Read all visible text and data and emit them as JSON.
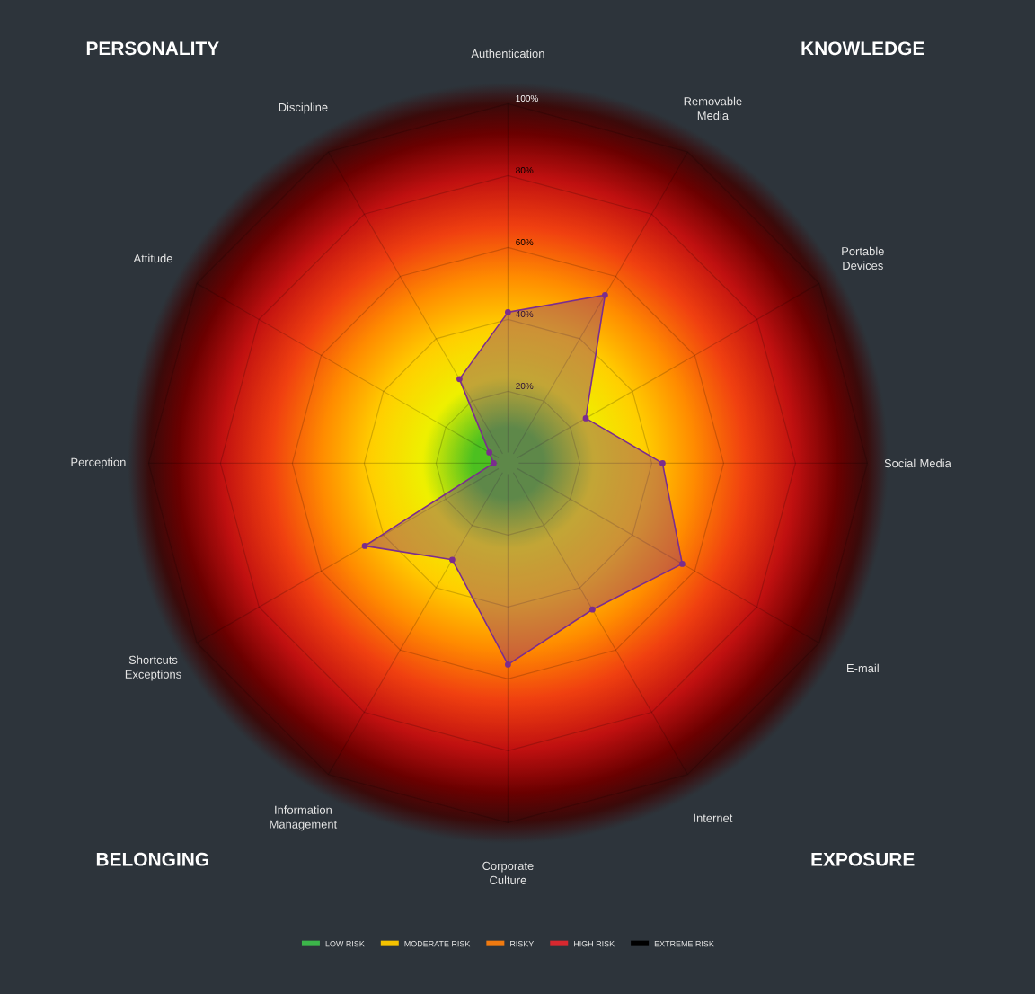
{
  "chart_data": {
    "type": "radar",
    "categories": [
      "Authentication",
      "Removable Media",
      "Portable Devices",
      "Social Media",
      "E-mail",
      "Internet",
      "Corporate Culture",
      "Information Management",
      "Shortcuts Exceptions",
      "Perception",
      "Attitude",
      "Discipline"
    ],
    "series": [
      {
        "color": "#7b2d8e",
        "values": [
          42,
          54,
          25,
          43,
          56,
          47,
          56,
          31,
          46,
          4,
          6,
          27
        ]
      }
    ],
    "ylim": [
      0,
      100
    ],
    "yticks": [
      {
        "value": 20,
        "label": "20%"
      },
      {
        "value": 40,
        "label": "40%"
      },
      {
        "value": 60,
        "label": "60%"
      },
      {
        "value": 80,
        "label": "80%"
      },
      {
        "value": 100,
        "label": "100%"
      }
    ],
    "grid": true,
    "marker": "circle",
    "annotations": [
      "PERSONALITY",
      "KNOWLEDGE",
      "BELONGING",
      "EXPOSURE",
      "LOW RISK",
      "MODERATE RISK",
      "RISKY",
      "HIGH RISK",
      "EXTREME RISK"
    ]
  }
}
